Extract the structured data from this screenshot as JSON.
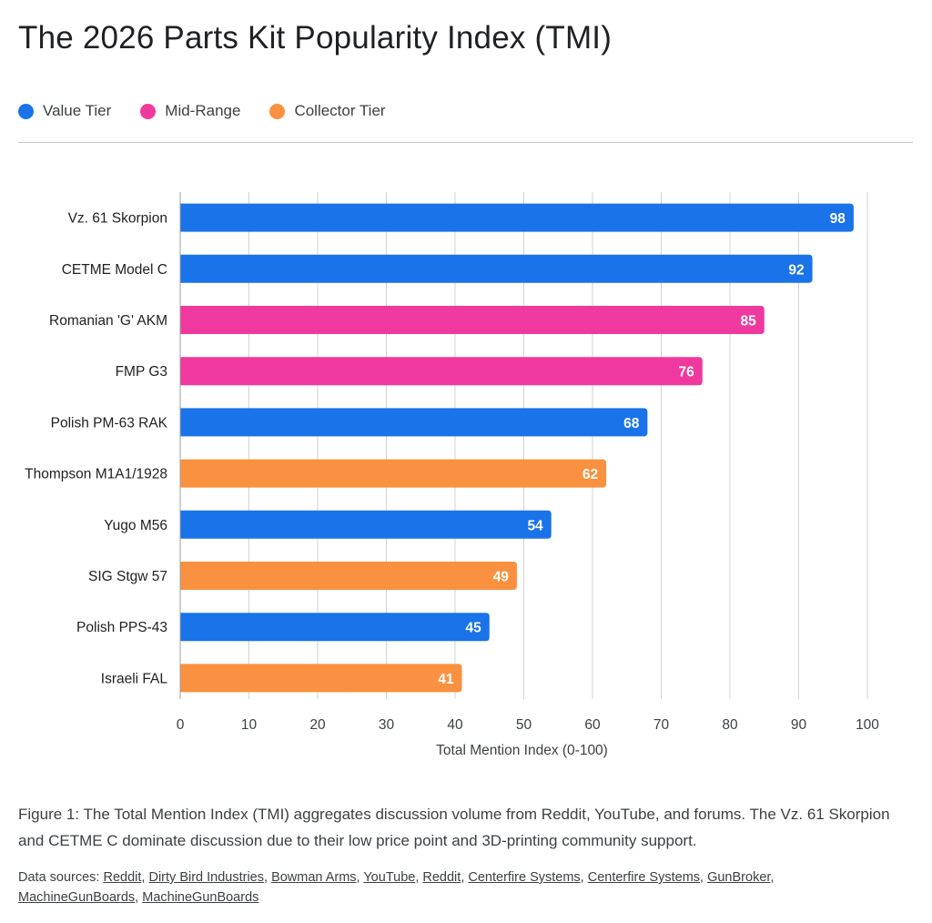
{
  "title": "The 2026 Parts Kit Popularity Index (TMI)",
  "legend": [
    {
      "label": "Value Tier",
      "color": "#1a73e8"
    },
    {
      "label": "Mid-Range",
      "color": "#f0399e"
    },
    {
      "label": "Collector Tier",
      "color": "#fa9140"
    }
  ],
  "chart_data": {
    "type": "bar",
    "orientation": "horizontal",
    "categories": [
      "Vz. 61 Skorpion",
      "CETME Model C",
      "Romanian 'G' AKM",
      "FMP G3",
      "Polish PM-63 RAK",
      "Thompson M1A1/1928",
      "Yugo M56",
      "SIG Stgw 57",
      "Polish PPS-43",
      "Israeli FAL"
    ],
    "values": [
      98,
      92,
      85,
      76,
      68,
      62,
      54,
      49,
      45,
      41
    ],
    "tiers": [
      "Value Tier",
      "Value Tier",
      "Mid-Range",
      "Mid-Range",
      "Value Tier",
      "Collector Tier",
      "Value Tier",
      "Collector Tier",
      "Value Tier",
      "Collector Tier"
    ],
    "xlabel": "Total Mention Index (0-100)",
    "xlim": [
      0,
      100
    ],
    "xticks": [
      0,
      10,
      20,
      30,
      40,
      50,
      60,
      70,
      80,
      90,
      100
    ],
    "grid": true,
    "legend_position": "top-left"
  },
  "caption": "Figure 1: The Total Mention Index (TMI) aggregates discussion volume from Reddit, YouTube, and forums. The Vz. 61 Skorpion and CETME C dominate discussion due to their low price point and 3D-printing community support.",
  "sources": {
    "prefix": "Data sources:",
    "links": [
      "Reddit",
      "Dirty Bird Industries",
      "Bowman Arms",
      "YouTube",
      "Reddit",
      "Centerfire Systems",
      "Centerfire Systems",
      "GunBroker",
      "MachineGunBoards",
      "MachineGunBoards"
    ]
  }
}
